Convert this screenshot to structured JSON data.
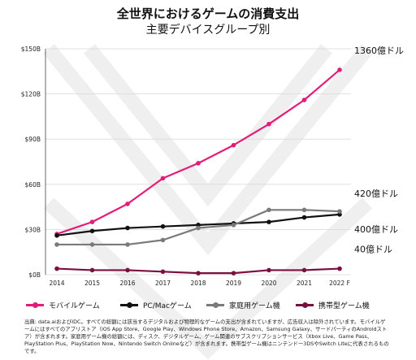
{
  "title": "全世界におけるゲームの消費支出",
  "subtitle": "主要デバイスグループ別",
  "chart_data": {
    "type": "line",
    "categories": [
      "2014",
      "2015",
      "2016",
      "2017",
      "2018",
      "2019",
      "2020",
      "2021",
      "2022 F"
    ],
    "y_ticks": [
      "$0B",
      "$30B",
      "$60B",
      "$90B",
      "$120B",
      "$150B"
    ],
    "ylim": [
      0,
      150
    ],
    "grid": "horizontal",
    "series": [
      {
        "name": "モバイルゲーム",
        "color": "#e31c79",
        "values": [
          27,
          35,
          47,
          64,
          74,
          86,
          100,
          116,
          136
        ],
        "end_label": "1360億ドル"
      },
      {
        "name": "PC/Macゲーム",
        "color": "#111111",
        "values": [
          26,
          29,
          31,
          32,
          33,
          34,
          35,
          38,
          40
        ],
        "end_label": "400億ドル"
      },
      {
        "name": "家庭用ゲーム機",
        "color": "#7a7a7a",
        "values": [
          20,
          20,
          20,
          23,
          31,
          33,
          43,
          43,
          42
        ],
        "end_label": "420億ドル"
      },
      {
        "name": "携帯型ゲーム機",
        "color": "#7a1040",
        "values": [
          4,
          3,
          3,
          2,
          1,
          1,
          3,
          3,
          4
        ],
        "end_label": "40億ドル"
      }
    ]
  },
  "footnote": "出典: data.aiおよびIDC。すべての総額には該当するデジタルおよび物理的なゲームの支出が含まれていますが、広告収入は除外されています。モバイルゲームにはすべてのアプリストア（iOS App Store、Google Play、Windows Phone Store、Amazon、Samsung Galaxy、サードパーティのAndroidストア）が含まれます。家庭用ゲーム機の総額には、ディスク、デジタルゲーム、ゲーム関連のサブスクリプションサービス（Xbox Live、Game Pass、PlayStation Plus、PlayStation Now、Nintendo Switch Onlineなど）が含まれます。携帯型ゲーム機はニンテンドー3DSやSwitch Liteに代表されるものです。"
}
